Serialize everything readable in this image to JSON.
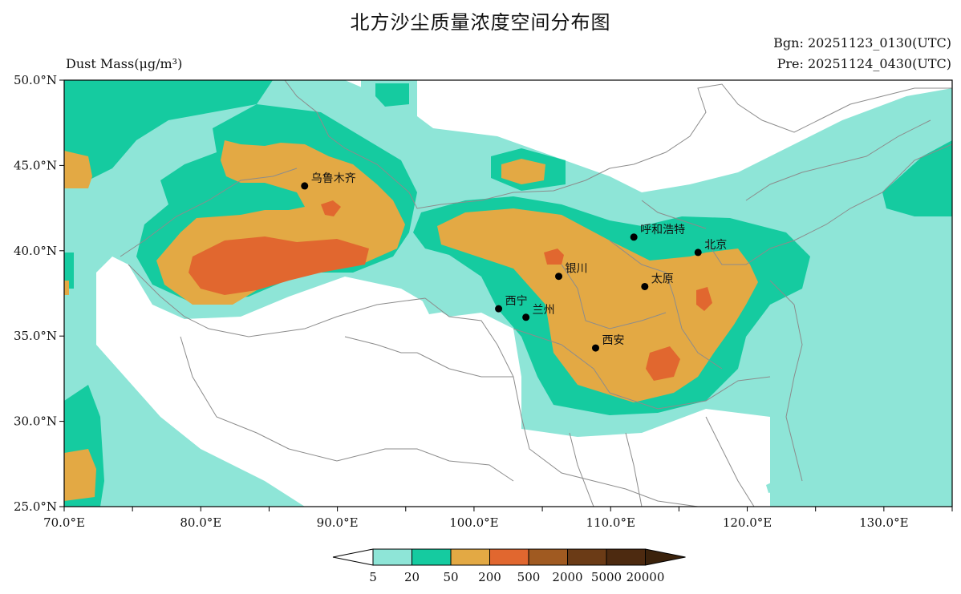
{
  "title": "北方沙尘质量浓度空间分布图",
  "quantity_label": "Dust Mass(μg/m³)",
  "bgn": "Bgn: 20251123_0130(UTC)",
  "pre": "Pre: 20251124_0430(UTC)",
  "map": {
    "lon_range": [
      70,
      135
    ],
    "lat_range": [
      25,
      50
    ],
    "x_ticks": [
      "70.0°E",
      "80.0°E",
      "90.0°E",
      "100.0°E",
      "110.0°E",
      "120.0°E",
      "130.0°E"
    ],
    "y_ticks": [
      "50.0°N",
      "45.0°N",
      "40.0°N",
      "35.0°N",
      "30.0°N",
      "25.0°N"
    ]
  },
  "colorbar": {
    "levels": [
      "5",
      "20",
      "50",
      "200",
      "500",
      "2000",
      "5000",
      "20000"
    ],
    "colors": [
      "#ffffff",
      "#8ee5d7",
      "#15cba0",
      "#e3a944",
      "#e1672f",
      "#a05a21",
      "#6b3b16",
      "#4d2a10",
      "#3b220c"
    ]
  },
  "cities": [
    {
      "name": "乌鲁木齐",
      "lon": 87.6,
      "lat": 43.8
    },
    {
      "name": "呼和浩特",
      "lon": 111.7,
      "lat": 40.8
    },
    {
      "name": "北京",
      "lon": 116.4,
      "lat": 39.9
    },
    {
      "name": "银川",
      "lon": 106.2,
      "lat": 38.5
    },
    {
      "name": "太原",
      "lon": 112.5,
      "lat": 37.9
    },
    {
      "name": "西宁",
      "lon": 101.8,
      "lat": 36.6
    },
    {
      "name": "兰州",
      "lon": 103.8,
      "lat": 36.1
    },
    {
      "name": "西安",
      "lon": 108.9,
      "lat": 34.3
    }
  ]
}
